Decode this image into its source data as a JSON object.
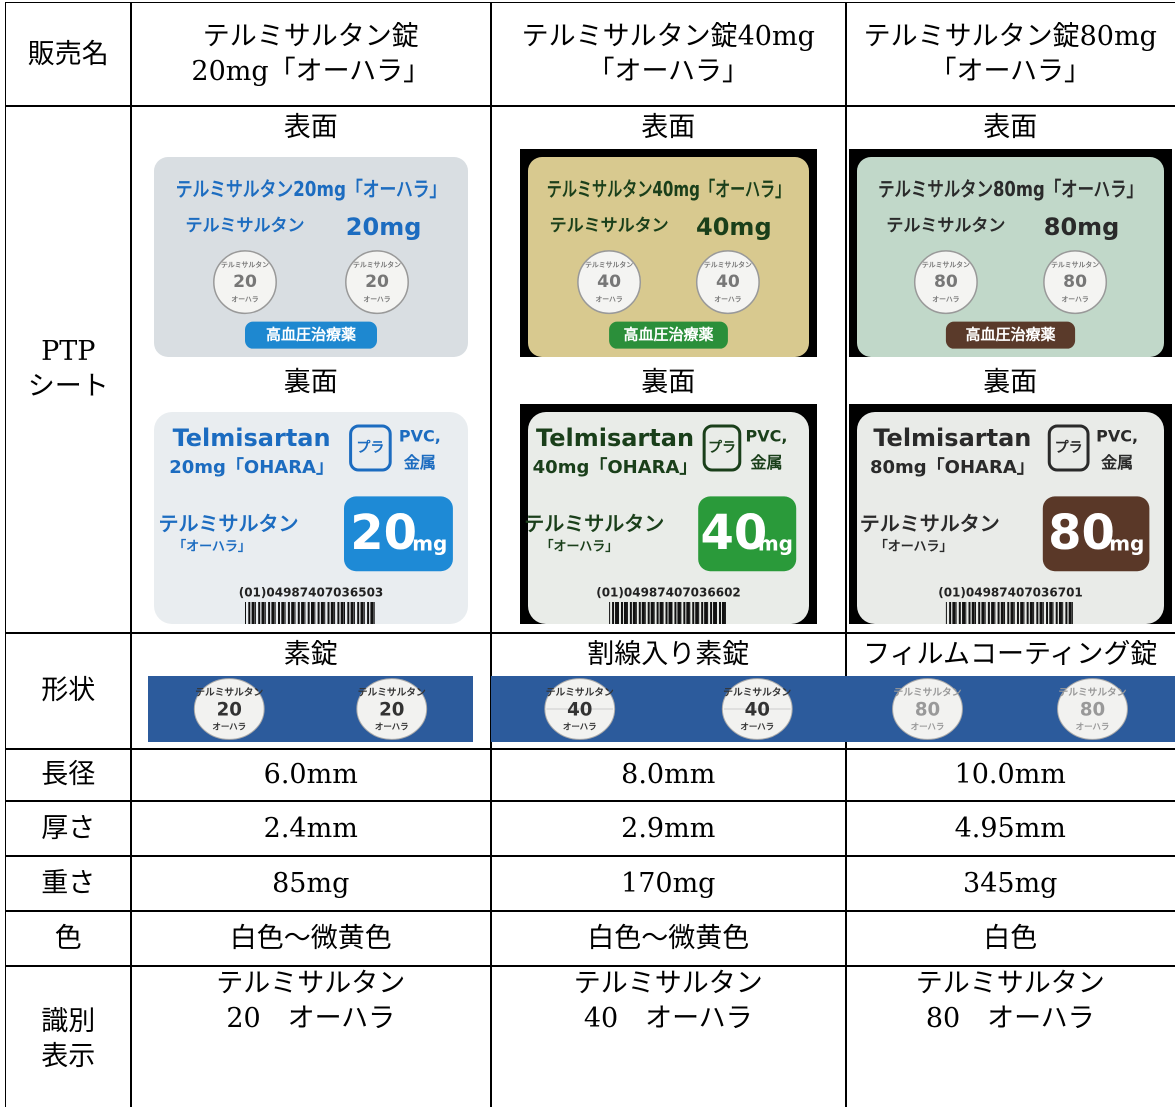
{
  "table": {
    "row_labels": [
      "販売名",
      [
        "PTP",
        "シート"
      ],
      "形状",
      "長径",
      "厚さ",
      "重さ",
      "色",
      [
        "識別",
        "表示"
      ]
    ],
    "columns": [
      {
        "name": [
          "テルミサルタン錠",
          "20mg「オーハラ」"
        ],
        "front_label": "表面",
        "back_label": "裏面",
        "front": {
          "title": "テルミサルタン20mg「オーハラ」",
          "name": "テルミサルタン",
          "strength": "20mg",
          "pill_top": "テルミサルタン",
          "pill_num": "20",
          "pill_bottom": "オーハラ",
          "badge": "高血圧治療薬"
        },
        "back": {
          "name": "Telmisartan",
          "strength": "20mg「OHARA」",
          "recycle": "プラ",
          "material1": "PVC,",
          "material2": "金属",
          "jp_name": "テルミサルタン",
          "jp_maker": "「オーハラ」",
          "big": "20",
          "unit": "mg",
          "code": "(01)04987407036503"
        },
        "shape": "素錠",
        "tablet": {
          "top": "テルミサルタン",
          "num": "20",
          "bottom": "オーハラ"
        },
        "length": "6.0mm",
        "thickness": "2.4mm",
        "weight": "85mg",
        "color": "白色～微黄色",
        "id": [
          "テルミサルタン",
          "20　オーハラ"
        ]
      },
      {
        "name": [
          "テルミサルタン錠40mg",
          "「オーハラ」"
        ],
        "front_label": "表面",
        "back_label": "裏面",
        "front": {
          "title": "テルミサルタン40mg「オーハラ」",
          "name": "テルミサルタン",
          "strength": "40mg",
          "pill_top": "テルミサルタン",
          "pill_num": "40",
          "pill_bottom": "オーハラ",
          "badge": "高血圧治療薬"
        },
        "back": {
          "name": "Telmisartan",
          "strength": "40mg「OHARA」",
          "recycle": "プラ",
          "material1": "PVC,",
          "material2": "金属",
          "jp_name": "テルミサルタン",
          "jp_maker": "「オーハラ」",
          "big": "40",
          "unit": "mg",
          "code": "(01)04987407036602"
        },
        "shape": "割線入り素錠",
        "tablet": {
          "top": "テルミサルタン",
          "num": "40",
          "bottom": "オーハラ"
        },
        "length": "8.0mm",
        "thickness": "2.9mm",
        "weight": "170mg",
        "color": "白色～微黄色",
        "id": [
          "テルミサルタン",
          "40　オーハラ"
        ]
      },
      {
        "name": [
          "テルミサルタン錠80mg",
          "「オーハラ」"
        ],
        "front_label": "表面",
        "back_label": "裏面",
        "front": {
          "title": "テルミサルタン80mg「オーハラ」",
          "name": "テルミサルタン",
          "strength": "80mg",
          "pill_top": "テルミサルタン",
          "pill_num": "80",
          "pill_bottom": "オーハラ",
          "badge": "高血圧治療薬"
        },
        "back": {
          "name": "Telmisartan",
          "strength": "80mg「OHARA」",
          "recycle": "プラ",
          "material1": "PVC,",
          "material2": "金属",
          "jp_name": "テルミサルタン",
          "jp_maker": "「オーハラ」",
          "big": "80",
          "unit": "mg",
          "code": "(01)04987407036701"
        },
        "shape": "フィルムコーティング錠",
        "tablet": {
          "top": "テルミサルタン",
          "num": "80",
          "bottom": "オーハラ"
        },
        "length": "10.0mm",
        "thickness": "4.95mm",
        "weight": "345mg",
        "color": "白色",
        "id": [
          "テルミサルタン",
          "80　オーハラ"
        ]
      }
    ]
  }
}
